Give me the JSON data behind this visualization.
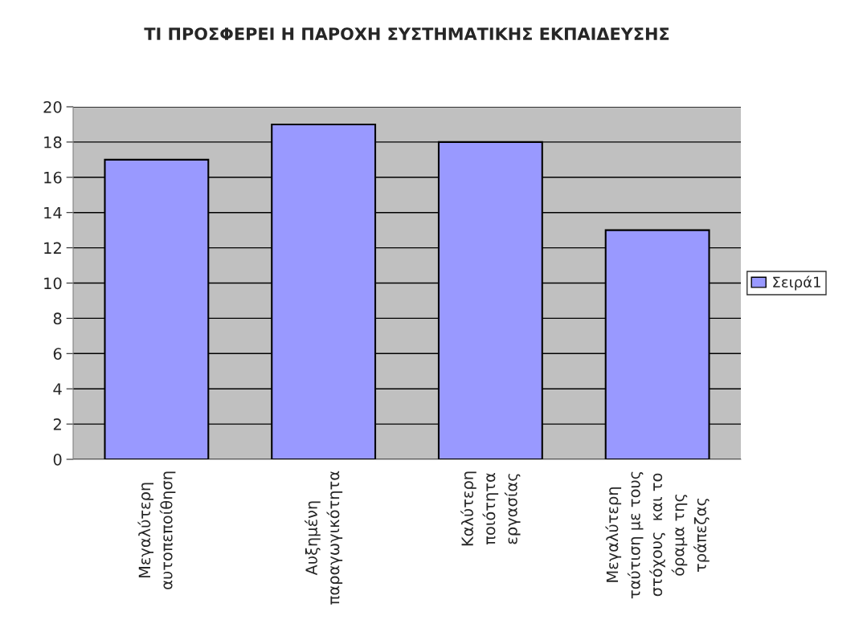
{
  "chart_data": {
    "type": "bar",
    "title": "ΤΙ ΠΡΟΣΦΕΡΕΙ Η ΠΑΡΟΧΗ ΣΥΣΤΗΜΑΤΙΚΗΣ ΕΚΠΑΙΔΕΥΣΗΣ",
    "categories": [
      "Μεγαλύτερη\nαυτοπεποίθηση",
      "Αυξημένη\nπαραγωγικότητα",
      "Καλύτερη\nποιότητα\nεργασίας",
      "Μεγαλύτερη\nταύτιση με τους\nστόχους  και το\nόραμα της\nτράπεζας"
    ],
    "series": [
      {
        "name": "Σειρά1",
        "color": "#9999ff",
        "values": [
          17,
          19,
          18,
          13
        ]
      }
    ],
    "ylim": [
      0,
      20
    ],
    "yticks": [
      0,
      2,
      4,
      6,
      8,
      10,
      12,
      14,
      16,
      18,
      20
    ],
    "grid": "y",
    "legend": "right"
  }
}
